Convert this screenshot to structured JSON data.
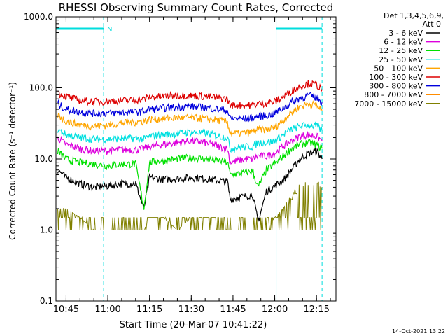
{
  "chart_data": {
    "type": "line",
    "title": "RHESSI Observing Summary Count Rates, Corrected",
    "xlabel": "Start Time (20-Mar-07 10:41:22)",
    "ylabel": "Corrected Count Rate (s⁻¹ detector⁻¹)",
    "yscale": "log",
    "ylim": [
      0.1,
      1000
    ],
    "xlim": [
      "10:41:22",
      "12:22:00"
    ],
    "y_ticks": [
      "1000.0",
      "100.0",
      "10.0",
      "1.0",
      "0.1"
    ],
    "x_ticks": [
      "10:45",
      "11:00",
      "11:15",
      "11:30",
      "11:45",
      "12:00",
      "12:15"
    ],
    "legend_header": [
      "Det 1,3,4,5,6,9,",
      "Att 0"
    ],
    "timestamp": "14-Oct-2021 13:22",
    "night_label": "N",
    "series": [
      {
        "name": "3 - 6 keV",
        "color": "#000000",
        "x": [
          "10:42",
          "10:45",
          "10:50",
          "10:55",
          "11:00",
          "11:05",
          "11:10",
          "11:13",
          "11:15",
          "11:20",
          "11:25",
          "11:30",
          "11:35",
          "11:40",
          "11:43",
          "11:44",
          "11:47",
          "11:50",
          "11:52",
          "11:54",
          "11:57",
          "12:00",
          "12:03",
          "12:06",
          "12:09",
          "12:12",
          "12:15",
          "12:17"
        ],
        "y": [
          7,
          5.5,
          4.5,
          4,
          4.2,
          4.5,
          4.5,
          2,
          5.5,
          5.2,
          5.3,
          5.5,
          5.3,
          5,
          4.8,
          2.7,
          2.9,
          3,
          3.2,
          1.3,
          3.5,
          4.2,
          5,
          7,
          10,
          12,
          13,
          10
        ]
      },
      {
        "name": "6 - 12 keV",
        "color": "#dd00dd",
        "x": [
          "10:42",
          "10:45",
          "10:50",
          "10:55",
          "11:00",
          "11:05",
          "11:10",
          "11:13",
          "11:15",
          "11:20",
          "11:25",
          "11:30",
          "11:35",
          "11:40",
          "11:43",
          "11:44",
          "11:47",
          "11:50",
          "11:52",
          "11:54",
          "11:57",
          "12:00",
          "12:03",
          "12:06",
          "12:09",
          "12:12",
          "12:15",
          "12:17"
        ],
        "y": [
          20,
          16,
          14,
          13,
          13,
          13.5,
          13.5,
          14,
          15,
          16,
          17,
          18,
          17,
          15,
          14,
          9,
          9.5,
          10,
          10,
          11,
          11,
          12,
          15,
          18,
          21,
          22,
          21,
          18
        ]
      },
      {
        "name": "12 - 25 keV",
        "color": "#00e000",
        "x": [
          "10:42",
          "10:45",
          "10:50",
          "10:55",
          "11:00",
          "11:05",
          "11:10",
          "11:13",
          "11:15",
          "11:20",
          "11:25",
          "11:30",
          "11:35",
          "11:40",
          "11:43",
          "11:44",
          "11:47",
          "11:50",
          "11:52",
          "11:54",
          "11:57",
          "12:00",
          "12:03",
          "12:06",
          "12:09",
          "12:12",
          "12:15",
          "12:17"
        ],
        "y": [
          13,
          10,
          9,
          8.5,
          8,
          8.5,
          8.5,
          2,
          9,
          9.5,
          10,
          10.5,
          10,
          9.5,
          9,
          6,
          6.2,
          6.5,
          6.8,
          4,
          7,
          8.5,
          11,
          14,
          16,
          17,
          16,
          14
        ]
      },
      {
        "name": "25 - 50 keV",
        "color": "#00e0e0",
        "x": [
          "10:42",
          "10:45",
          "10:50",
          "10:55",
          "11:00",
          "11:05",
          "11:10",
          "11:13",
          "11:15",
          "11:20",
          "11:25",
          "11:30",
          "11:35",
          "11:40",
          "11:43",
          "11:44",
          "11:47",
          "11:50",
          "11:52",
          "11:54",
          "11:57",
          "12:00",
          "12:03",
          "12:06",
          "12:09",
          "12:12",
          "12:15",
          "12:17"
        ],
        "y": [
          26,
          22,
          20,
          19,
          19,
          19.5,
          19.5,
          19,
          21,
          22,
          23,
          24,
          23,
          21,
          20,
          14,
          14.5,
          15,
          15,
          17,
          17,
          18,
          22,
          26,
          29,
          30,
          29,
          25
        ]
      },
      {
        "name": "50 - 100 keV",
        "color": "#ffa500",
        "x": [
          "10:42",
          "10:45",
          "10:50",
          "10:55",
          "11:00",
          "11:05",
          "11:10",
          "11:13",
          "11:15",
          "11:20",
          "11:25",
          "11:30",
          "11:35",
          "11:40",
          "11:43",
          "11:44",
          "11:47",
          "11:50",
          "11:52",
          "11:54",
          "11:57",
          "12:00",
          "12:03",
          "12:06",
          "12:09",
          "12:12",
          "12:15",
          "12:17"
        ],
        "y": [
          42,
          34,
          30,
          29,
          30,
          32,
          33,
          34,
          36,
          37,
          38,
          38,
          37,
          35,
          33,
          23,
          23,
          23.5,
          24,
          26,
          26,
          28,
          35,
          45,
          55,
          60,
          57,
          48
        ]
      },
      {
        "name": "100 - 300 keV",
        "color": "#dd0000",
        "x": [
          "10:42",
          "10:45",
          "10:50",
          "10:55",
          "11:00",
          "11:05",
          "11:10",
          "11:13",
          "11:15",
          "11:20",
          "11:25",
          "11:30",
          "11:35",
          "11:40",
          "11:43",
          "11:44",
          "11:47",
          "11:50",
          "11:52",
          "11:54",
          "11:57",
          "12:00",
          "12:03",
          "12:06",
          "12:09",
          "12:12",
          "12:15",
          "12:17"
        ],
        "y": [
          85,
          75,
          67,
          64,
          65,
          66,
          68,
          70,
          74,
          76,
          78,
          78,
          76,
          72,
          70,
          57,
          57,
          57,
          57,
          60,
          61,
          64,
          75,
          90,
          105,
          115,
          110,
          95
        ]
      },
      {
        "name": "300 - 800 keV",
        "color": "#0000dd",
        "x": [
          "10:42",
          "10:45",
          "10:50",
          "10:55",
          "11:00",
          "11:05",
          "11:10",
          "11:13",
          "11:15",
          "11:20",
          "11:25",
          "11:30",
          "11:35",
          "11:40",
          "11:43",
          "11:44",
          "11:47",
          "11:50",
          "11:52",
          "11:54",
          "11:57",
          "12:00",
          "12:03",
          "12:06",
          "12:09",
          "12:12",
          "12:15",
          "12:17"
        ],
        "y": [
          60,
          50,
          46,
          44,
          44,
          45,
          46,
          47,
          50,
          52,
          54,
          55,
          53,
          50,
          48,
          37,
          37,
          37.5,
          38,
          40,
          41,
          44,
          52,
          63,
          72,
          78,
          74,
          63
        ]
      },
      {
        "name": "800 - 7000 keV",
        "color": "#ff8c00",
        "x": [],
        "y": []
      },
      {
        "name": "7000 - 15000 keV",
        "color": "#808000",
        "x": [
          "10:42",
          "10:45",
          "10:50",
          "10:55",
          "11:00",
          "11:05",
          "11:10",
          "11:13",
          "11:15",
          "11:20",
          "11:25",
          "11:30",
          "11:35",
          "11:40",
          "11:43",
          "11:47",
          "11:50",
          "11:52",
          "11:54",
          "11:57",
          "12:00",
          "12:03",
          "12:06",
          "12:09",
          "12:12",
          "12:15",
          "12:17"
        ],
        "y": [
          2,
          2,
          1.5,
          1,
          1,
          1,
          1,
          1,
          1.5,
          1.5,
          1,
          1.5,
          1.5,
          1.5,
          1,
          1,
          1,
          1,
          1,
          1,
          1.5,
          2,
          3,
          4,
          5,
          5,
          4
        ]
      }
    ],
    "night_intervals": [
      [
        "10:41:22",
        "10:58:30"
      ],
      [
        "12:00:30",
        "12:17:00"
      ]
    ],
    "saa_gaps": [
      [
        "11:44:00",
        "11:44:30"
      ],
      [
        "11:54:00",
        "11:54:30"
      ]
    ]
  }
}
